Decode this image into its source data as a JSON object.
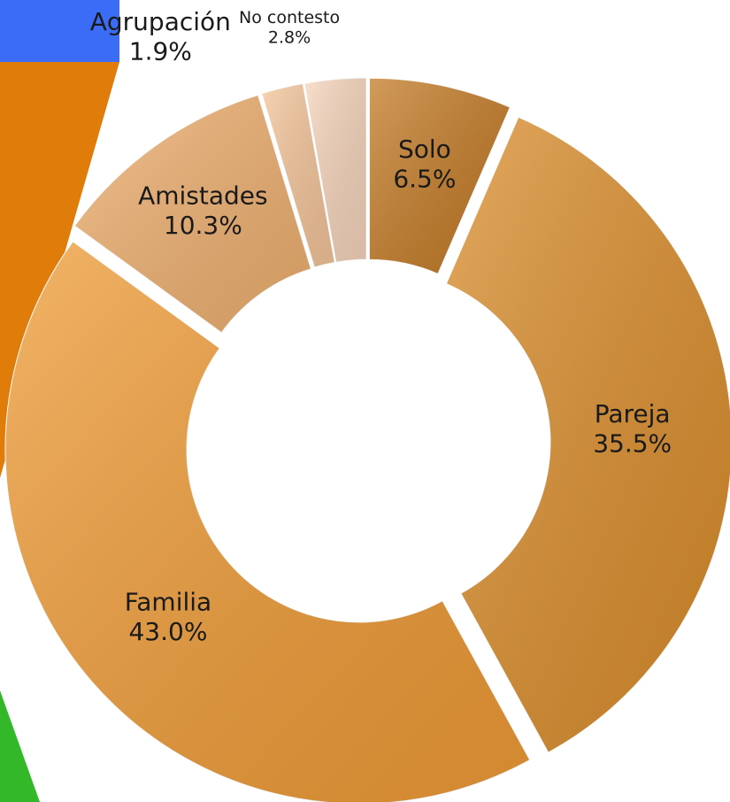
{
  "chart_data": {
    "type": "donut",
    "categories": [
      "Solo",
      "Pareja",
      "Familia",
      "Amistades",
      "Agrupación",
      "No contesto"
    ],
    "values": [
      6.5,
      35.5,
      43.0,
      10.3,
      1.9,
      2.8
    ],
    "value_labels": [
      "6.5%",
      "35.5%",
      "43.0%",
      "10.3%",
      "1.9%",
      "2.8%"
    ],
    "colors": [
      "#c47b26",
      "#db8e2c",
      "#f09c36",
      "#f0b070",
      "#f5c59a",
      "#f7d5bc"
    ]
  }
}
